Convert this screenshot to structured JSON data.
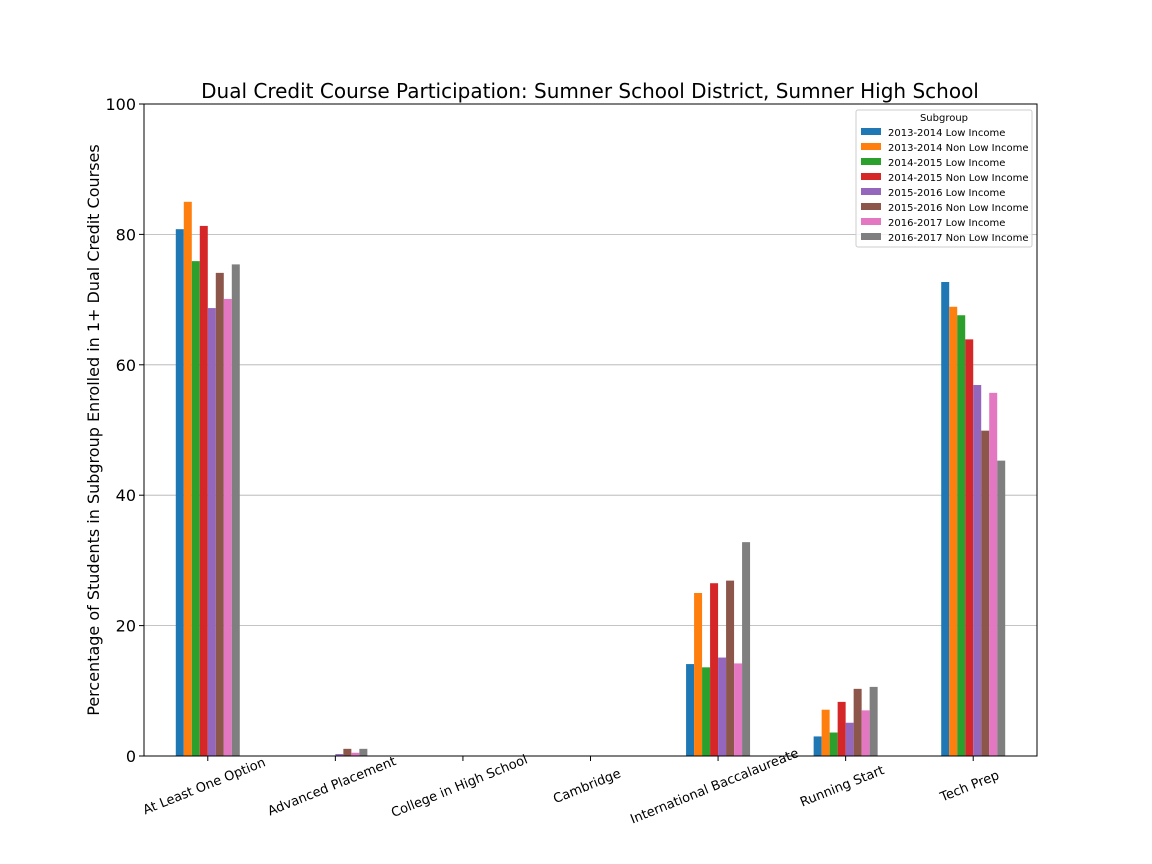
{
  "chart_data": {
    "type": "bar",
    "title": "Dual Credit Course Participation: Sumner School District, Sumner High School",
    "xlabel": "",
    "ylabel": "Percentage of Students in Subgroup Enrolled in 1+ Dual Credit Courses",
    "ylim": [
      0,
      100
    ],
    "yticks": [
      "0",
      "20",
      "40",
      "60",
      "80",
      "100"
    ],
    "grid": "horizontal",
    "legend_title": "Subgroup",
    "legend_position": "top-right",
    "categories": [
      "At Least One Option",
      "Advanced Placement",
      "College in High School",
      "Cambridge",
      "International Baccalaureate",
      "Running Start",
      "Tech Prep"
    ],
    "series": [
      {
        "name": "2013-2014 Low Income",
        "color": "#1f77b4",
        "values": [
          80.8,
          0,
          0,
          0,
          14.1,
          3.0,
          72.7
        ]
      },
      {
        "name": "2013-2014 Non Low Income",
        "color": "#ff7f0e",
        "values": [
          85.0,
          0,
          0,
          0,
          25.0,
          7.1,
          68.9
        ]
      },
      {
        "name": "2014-2015 Low Income",
        "color": "#2ca02c",
        "values": [
          75.9,
          0,
          0,
          0,
          13.6,
          3.6,
          67.6
        ]
      },
      {
        "name": "2014-2015 Non Low Income",
        "color": "#d62728",
        "values": [
          81.3,
          0,
          0,
          0,
          26.5,
          8.3,
          63.9
        ]
      },
      {
        "name": "2015-2016 Low Income",
        "color": "#9467bd",
        "values": [
          68.7,
          0.3,
          0,
          0,
          15.1,
          5.1,
          56.9
        ]
      },
      {
        "name": "2015-2016 Non Low Income",
        "color": "#8c564b",
        "values": [
          74.1,
          1.1,
          0,
          0,
          26.9,
          10.3,
          49.9
        ]
      },
      {
        "name": "2016-2017 Low Income",
        "color": "#e377c2",
        "values": [
          70.1,
          0.5,
          0,
          0,
          14.2,
          7.0,
          55.7
        ]
      },
      {
        "name": "2016-2017 Non Low Income",
        "color": "#7f7f7f",
        "values": [
          75.4,
          1.1,
          0,
          0,
          32.8,
          10.6,
          45.3
        ]
      }
    ]
  }
}
